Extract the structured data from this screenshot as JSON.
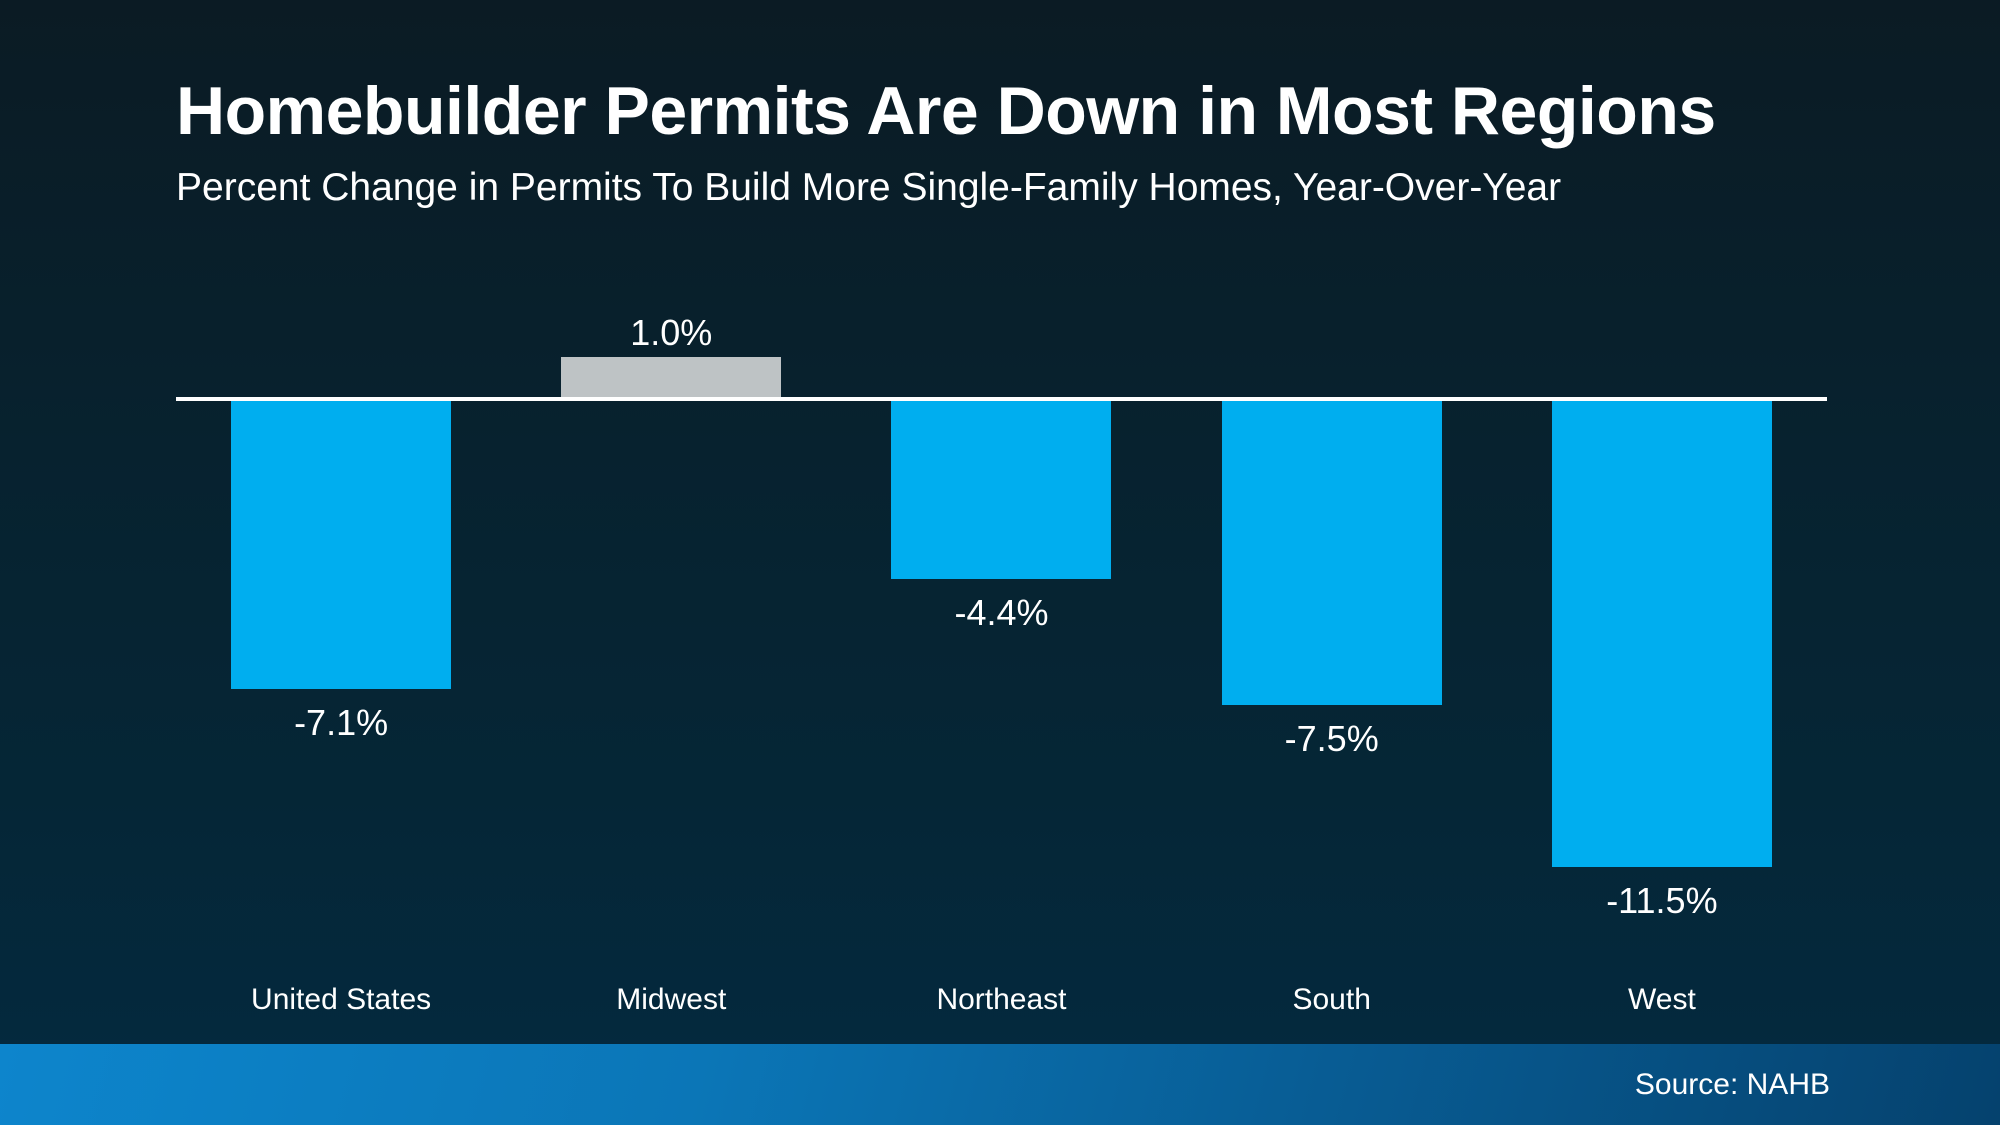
{
  "slide": {
    "title": "Homebuilder Permits Are Down in Most Regions",
    "subtitle": "Percent Change in Permits To Build More Single-Family Homes, Year-Over-Year",
    "source": "Source: NAHB"
  },
  "colors": {
    "bar_negative": "#00aeef",
    "bar_positive": "#bec3c5",
    "zero_line": "#ffffff",
    "background_top": "#0b1b24",
    "background_bottom": "#042a40",
    "footer_gradient_left": "#0d85cc",
    "footer_gradient_right": "#05426e",
    "text": "#ffffff"
  },
  "chart_data": {
    "type": "bar",
    "title": "Homebuilder Permits Are Down in Most Regions",
    "subtitle": "Percent Change in Permits To Build More Single-Family Homes, Year-Over-Year",
    "categories": [
      "United States",
      "Midwest",
      "Northeast",
      "South",
      "West"
    ],
    "values": [
      -7.1,
      1.0,
      -4.4,
      -7.5,
      -11.5
    ],
    "value_labels": [
      "-7.1%",
      "1.0%",
      "-4.4%",
      "-7.5%",
      "-11.5%"
    ],
    "bar_colors": [
      "#00aeef",
      "#bec3c5",
      "#00aeef",
      "#00aeef",
      "#00aeef"
    ],
    "xlabel": "",
    "ylabel": "",
    "ylim": [
      -12,
      2
    ],
    "baseline": 0,
    "grid": false,
    "legend": false,
    "annotations": [
      "Source: NAHB"
    ]
  }
}
